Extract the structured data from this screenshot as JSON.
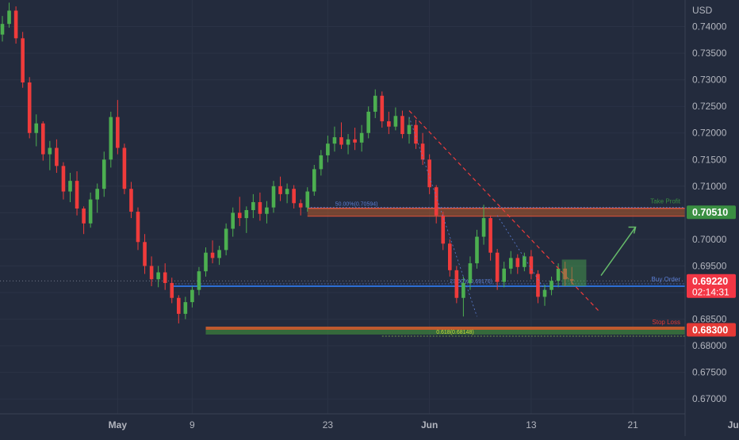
{
  "chart_data": {
    "type": "candlestick",
    "currency": "USD",
    "ylim": [
      0.6672,
      0.745
    ],
    "y_ticks": [
      "0.74000",
      "0.73500",
      "0.73000",
      "0.72500",
      "0.72000",
      "0.71500",
      "0.71000",
      "0.70500",
      "0.70000",
      "0.69500",
      "0.69000",
      "0.68500",
      "0.68000",
      "0.67500",
      "0.67000"
    ],
    "x_ticks": [
      {
        "label": "May",
        "bar": 17
      },
      {
        "label": "9",
        "bar": 28
      },
      {
        "label": "23",
        "bar": 48
      },
      {
        "label": "Jun",
        "bar": 63
      },
      {
        "label": "13",
        "bar": 78
      },
      {
        "label": "21",
        "bar": 93
      },
      {
        "label": "Jul",
        "bar": 108
      }
    ],
    "candles": [
      [
        0.7385,
        0.742,
        0.7372,
        0.7405
      ],
      [
        0.7405,
        0.7445,
        0.7398,
        0.743
      ],
      [
        0.743,
        0.7438,
        0.7368,
        0.7378
      ],
      [
        0.7378,
        0.739,
        0.7285,
        0.7295
      ],
      [
        0.7295,
        0.7305,
        0.719,
        0.72
      ],
      [
        0.72,
        0.7235,
        0.7175,
        0.7218
      ],
      [
        0.7218,
        0.7222,
        0.7148,
        0.716
      ],
      [
        0.716,
        0.7185,
        0.713,
        0.7172
      ],
      [
        0.7172,
        0.7188,
        0.7125,
        0.7138
      ],
      [
        0.7138,
        0.7145,
        0.7075,
        0.709
      ],
      [
        0.709,
        0.7125,
        0.707,
        0.711
      ],
      [
        0.711,
        0.7128,
        0.7045,
        0.7058
      ],
      [
        0.7058,
        0.7062,
        0.701,
        0.703
      ],
      [
        0.703,
        0.7088,
        0.7022,
        0.7075
      ],
      [
        0.7075,
        0.7105,
        0.705,
        0.7095
      ],
      [
        0.7095,
        0.7165,
        0.708,
        0.715
      ],
      [
        0.715,
        0.724,
        0.7135,
        0.723
      ],
      [
        0.723,
        0.7262,
        0.716,
        0.7172
      ],
      [
        0.7172,
        0.718,
        0.7085,
        0.7095
      ],
      [
        0.7095,
        0.7108,
        0.704,
        0.7052
      ],
      [
        0.7052,
        0.706,
        0.698,
        0.6995
      ],
      [
        0.6995,
        0.701,
        0.6935,
        0.695
      ],
      [
        0.695,
        0.6968,
        0.6912,
        0.6925
      ],
      [
        0.6925,
        0.695,
        0.691,
        0.6938
      ],
      [
        0.6938,
        0.6955,
        0.6905,
        0.6918
      ],
      [
        0.6918,
        0.6928,
        0.688,
        0.689
      ],
      [
        0.689,
        0.6895,
        0.6842,
        0.686
      ],
      [
        0.686,
        0.6892,
        0.685,
        0.6882
      ],
      [
        0.6882,
        0.6912,
        0.6872,
        0.6905
      ],
      [
        0.6905,
        0.6948,
        0.6895,
        0.694
      ],
      [
        0.694,
        0.6985,
        0.693,
        0.6975
      ],
      [
        0.6975,
        0.6998,
        0.6955,
        0.6965
      ],
      [
        0.6965,
        0.6988,
        0.6952,
        0.698
      ],
      [
        0.698,
        0.703,
        0.697,
        0.702
      ],
      [
        0.702,
        0.706,
        0.7005,
        0.705
      ],
      [
        0.705,
        0.708,
        0.7025,
        0.704
      ],
      [
        0.704,
        0.7062,
        0.7012,
        0.7055
      ],
      [
        0.7055,
        0.7085,
        0.704,
        0.707
      ],
      [
        0.707,
        0.7088,
        0.7035,
        0.7048
      ],
      [
        0.7048,
        0.7072,
        0.703,
        0.706
      ],
      [
        0.706,
        0.711,
        0.705,
        0.71
      ],
      [
        0.71,
        0.7118,
        0.7072,
        0.7085
      ],
      [
        0.7085,
        0.7105,
        0.7068,
        0.7095
      ],
      [
        0.7095,
        0.7102,
        0.7058,
        0.7068
      ],
      [
        0.7068,
        0.7075,
        0.7045,
        0.706
      ],
      [
        0.706,
        0.7098,
        0.7052,
        0.709
      ],
      [
        0.709,
        0.714,
        0.7082,
        0.7132
      ],
      [
        0.7132,
        0.7168,
        0.712,
        0.7158
      ],
      [
        0.7158,
        0.7195,
        0.7145,
        0.718
      ],
      [
        0.718,
        0.7212,
        0.7165,
        0.7192
      ],
      [
        0.7192,
        0.722,
        0.717,
        0.7178
      ],
      [
        0.7178,
        0.7198,
        0.716,
        0.7188
      ],
      [
        0.7188,
        0.721,
        0.7168,
        0.7182
      ],
      [
        0.7182,
        0.7215,
        0.7165,
        0.72
      ],
      [
        0.72,
        0.725,
        0.719,
        0.724
      ],
      [
        0.724,
        0.7282,
        0.7228,
        0.727
      ],
      [
        0.727,
        0.7278,
        0.721,
        0.7222
      ],
      [
        0.7222,
        0.724,
        0.7198,
        0.7212
      ],
      [
        0.7212,
        0.7248,
        0.7205,
        0.7232
      ],
      [
        0.7232,
        0.7242,
        0.719,
        0.7198
      ],
      [
        0.7198,
        0.723,
        0.718,
        0.7215
      ],
      [
        0.7215,
        0.7225,
        0.717,
        0.718
      ],
      [
        0.718,
        0.72,
        0.714,
        0.715
      ],
      [
        0.715,
        0.716,
        0.7085,
        0.7098
      ],
      [
        0.7098,
        0.7102,
        0.703,
        0.7045
      ],
      [
        0.7045,
        0.7052,
        0.698,
        0.6992
      ],
      [
        0.6992,
        0.7,
        0.693,
        0.6942
      ],
      [
        0.6942,
        0.695,
        0.688,
        0.689
      ],
      [
        0.689,
        0.693,
        0.6855,
        0.6918
      ],
      [
        0.6918,
        0.6968,
        0.6905,
        0.6955
      ],
      [
        0.6955,
        0.7018,
        0.6945,
        0.7005
      ],
      [
        0.7005,
        0.7065,
        0.699,
        0.704
      ],
      [
        0.704,
        0.7045,
        0.696,
        0.6975
      ],
      [
        0.6975,
        0.6982,
        0.6905,
        0.692
      ],
      [
        0.692,
        0.6958,
        0.691,
        0.6945
      ],
      [
        0.6945,
        0.6978,
        0.6935,
        0.6965
      ],
      [
        0.6965,
        0.6972,
        0.6935,
        0.6948
      ],
      [
        0.6948,
        0.6975,
        0.694,
        0.6968
      ],
      [
        0.6968,
        0.698,
        0.6925,
        0.6935
      ],
      [
        0.6935,
        0.6942,
        0.688,
        0.6892
      ],
      [
        0.6892,
        0.6915,
        0.6875,
        0.6905
      ],
      [
        0.6905,
        0.693,
        0.6895,
        0.6922
      ],
      [
        0.6922,
        0.6955,
        0.691,
        0.6945
      ],
      [
        0.6945,
        0.6958,
        0.6912,
        0.6925
      ],
      [
        0.6925,
        0.6948,
        0.6915,
        0.6922
      ]
    ],
    "levels": [
      {
        "name": "take_profit",
        "label": "Take Profit",
        "fib": "50.00%(0.70594)",
        "value": 0.7051,
        "price_tag": "0.70510",
        "color": "#3a8f42"
      },
      {
        "name": "buy_order",
        "label": "Buy Order",
        "fib": "23.60%(0.69170)",
        "value": 0.6912,
        "price_tag": "",
        "color": "#2d6fd6"
      },
      {
        "name": "stop_loss",
        "label": "Stop Loss",
        "fib": "0.618(0.68148)",
        "value": 0.683,
        "price_tag": "0.68300",
        "color": "#e53935"
      }
    ],
    "current_price": {
      "value": 0.6922,
      "label": "0.69220",
      "countdown": "02:14:31",
      "color": "#f23645"
    }
  }
}
